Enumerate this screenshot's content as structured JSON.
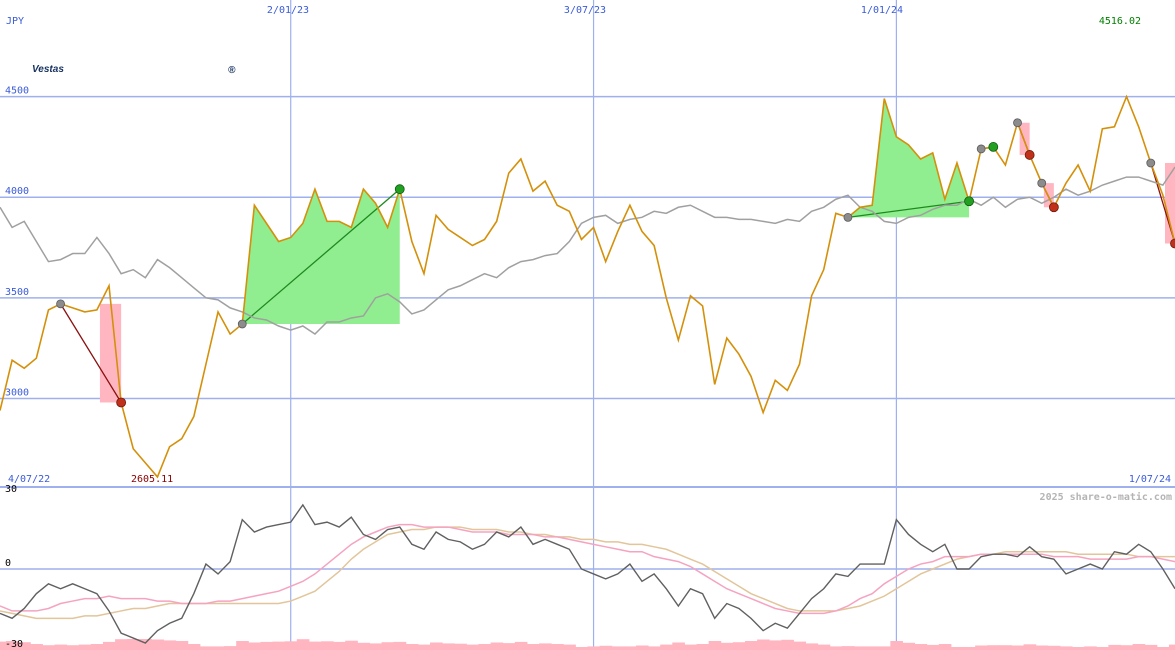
{
  "header": {
    "currency": "JPY",
    "last_price": "4516.02",
    "low_price": "2605.11",
    "copyright": "2025 share-o-matic.com"
  },
  "logo": {
    "text": "Vestas",
    "registered": "®",
    "color": "#15315f"
  },
  "dates": {
    "top": [
      "2/01/23",
      "3/07/23",
      "1/01/24"
    ],
    "start": "4/07/22",
    "end": "1/07/24"
  },
  "colors": {
    "price": "#d4900a",
    "benchmark": "#a0a0a0",
    "grid": "#9fb0ee",
    "gain": "#90ee90",
    "loss": "#ffb6c1",
    "osc_main": "#606060",
    "osc_fast": "#f5a3c0",
    "osc_slow": "#e2c59a",
    "label_blue": "#3a5bd8",
    "label_green": "#008000",
    "label_red": "#8b0000"
  },
  "chart_data": [
    {
      "type": "line",
      "name": "price",
      "y_ticks": [
        3000,
        3500,
        4000,
        4500
      ],
      "ylim": [
        2560,
        4980
      ],
      "x_date_ticks": [
        "2/01/23",
        "3/07/23",
        "1/01/24"
      ],
      "series": [
        {
          "role": "price",
          "values": [
            2940,
            3190,
            3150,
            3200,
            3440,
            3470,
            3450,
            3430,
            3440,
            3560,
            2980,
            2750,
            2680,
            2610,
            2760,
            2800,
            2910,
            3170,
            3430,
            3320,
            3370,
            3960,
            3870,
            3780,
            3800,
            3870,
            4040,
            3880,
            3880,
            3850,
            4040,
            3970,
            3850,
            4040,
            3780,
            3620,
            3910,
            3840,
            3800,
            3760,
            3790,
            3880,
            4120,
            4190,
            4030,
            4080,
            3960,
            3930,
            3790,
            3850,
            3680,
            3830,
            3960,
            3830,
            3760,
            3500,
            3290,
            3510,
            3460,
            3070,
            3300,
            3220,
            3110,
            2930,
            3090,
            3040,
            3170,
            3510,
            3640,
            3920,
            3900,
            3950,
            3960,
            4490,
            4300,
            4260,
            4190,
            4220,
            3990,
            4170,
            3980,
            4240,
            4250,
            4160,
            4370,
            4210,
            4070,
            3950,
            4070,
            4160,
            4030,
            4340,
            4350,
            4500,
            4350,
            4170,
            4010,
            3770
          ]
        },
        {
          "role": "benchmark",
          "values": [
            3950,
            3850,
            3880,
            3780,
            3680,
            3690,
            3720,
            3720,
            3800,
            3720,
            3620,
            3640,
            3600,
            3690,
            3650,
            3600,
            3550,
            3500,
            3490,
            3450,
            3430,
            3400,
            3390,
            3360,
            3340,
            3360,
            3320,
            3380,
            3380,
            3400,
            3410,
            3500,
            3520,
            3480,
            3420,
            3440,
            3490,
            3540,
            3560,
            3590,
            3620,
            3600,
            3650,
            3680,
            3690,
            3710,
            3720,
            3780,
            3870,
            3900,
            3910,
            3870,
            3890,
            3900,
            3930,
            3920,
            3950,
            3960,
            3930,
            3900,
            3900,
            3890,
            3890,
            3880,
            3870,
            3890,
            3880,
            3930,
            3950,
            3990,
            4010,
            3950,
            3930,
            3880,
            3870,
            3900,
            3910,
            3940,
            3960,
            3960,
            3990,
            3960,
            4000,
            3950,
            3990,
            4000,
            3970,
            4000,
            4040,
            4010,
            4030,
            4060,
            4080,
            4100,
            4100,
            4080,
            4060,
            4150
          ]
        }
      ]
    },
    {
      "type": "line",
      "name": "oscillator",
      "y_ticks": [
        30,
        0,
        -30
      ],
      "ylim": [
        -30,
        30
      ],
      "series": [
        {
          "role": "main",
          "values": [
            -18,
            -20,
            -16,
            -10,
            -6,
            -8,
            -6,
            -8,
            -10,
            -17,
            -26,
            -28,
            -30,
            -25,
            -22,
            -20,
            -10,
            2,
            -2,
            3,
            20,
            15,
            17,
            18,
            19,
            26,
            18,
            19,
            17,
            21,
            14,
            12,
            16,
            17,
            10,
            8,
            15,
            12,
            11,
            8,
            10,
            15,
            13,
            17,
            10,
            12,
            10,
            8,
            0,
            -2,
            -4,
            -2,
            2,
            -5,
            -2,
            -8,
            -15,
            -8,
            -10,
            -20,
            -14,
            -16,
            -20,
            -25,
            -22,
            -24,
            -18,
            -12,
            -8,
            -2,
            -3,
            2,
            2,
            2,
            20,
            14,
            10,
            7,
            10,
            0,
            0,
            5,
            6,
            6,
            5,
            9,
            5,
            4,
            -2,
            0,
            2,
            0,
            7,
            6,
            10,
            7,
            0,
            -8
          ]
        },
        {
          "role": "fast",
          "values": [
            -15,
            -17,
            -17,
            -17,
            -16,
            -14,
            -13,
            -12,
            -12,
            -11,
            -12,
            -12,
            -12,
            -13,
            -13,
            -14,
            -14,
            -14,
            -13,
            -13,
            -12,
            -11,
            -10,
            -9,
            -7,
            -5,
            -2,
            2,
            6,
            10,
            13,
            15,
            17,
            18,
            18,
            17,
            17,
            17,
            16,
            15,
            15,
            15,
            14,
            14,
            14,
            13,
            13,
            12,
            11,
            10,
            9,
            8,
            7,
            7,
            5,
            4,
            3,
            1,
            -2,
            -5,
            -8,
            -10,
            -12,
            -14,
            -16,
            -17,
            -18,
            -18,
            -18,
            -17,
            -15,
            -12,
            -10,
            -6,
            -3,
            0,
            2,
            3,
            5,
            5,
            5,
            6,
            6,
            6,
            6,
            6,
            6,
            5,
            5,
            5,
            4,
            4,
            4,
            4,
            5,
            5,
            4,
            3
          ]
        },
        {
          "role": "slow",
          "values": [
            -17,
            -18,
            -19,
            -20,
            -20,
            -20,
            -20,
            -19,
            -19,
            -18,
            -17,
            -16,
            -16,
            -15,
            -14,
            -14,
            -14,
            -14,
            -14,
            -14,
            -14,
            -14,
            -14,
            -14,
            -13,
            -11,
            -9,
            -5,
            -1,
            4,
            8,
            11,
            14,
            15,
            16,
            16,
            17,
            17,
            17,
            16,
            16,
            16,
            15,
            15,
            14,
            14,
            13,
            13,
            12,
            12,
            11,
            11,
            10,
            10,
            9,
            8,
            6,
            4,
            2,
            -1,
            -4,
            -7,
            -10,
            -12,
            -14,
            -16,
            -17,
            -17,
            -17,
            -17,
            -16,
            -15,
            -13,
            -11,
            -8,
            -5,
            -2,
            0,
            2,
            4,
            5,
            6,
            6,
            7,
            7,
            7,
            7,
            7,
            7,
            6,
            6,
            6,
            6,
            6,
            5,
            5,
            5,
            5
          ]
        }
      ]
    }
  ]
}
